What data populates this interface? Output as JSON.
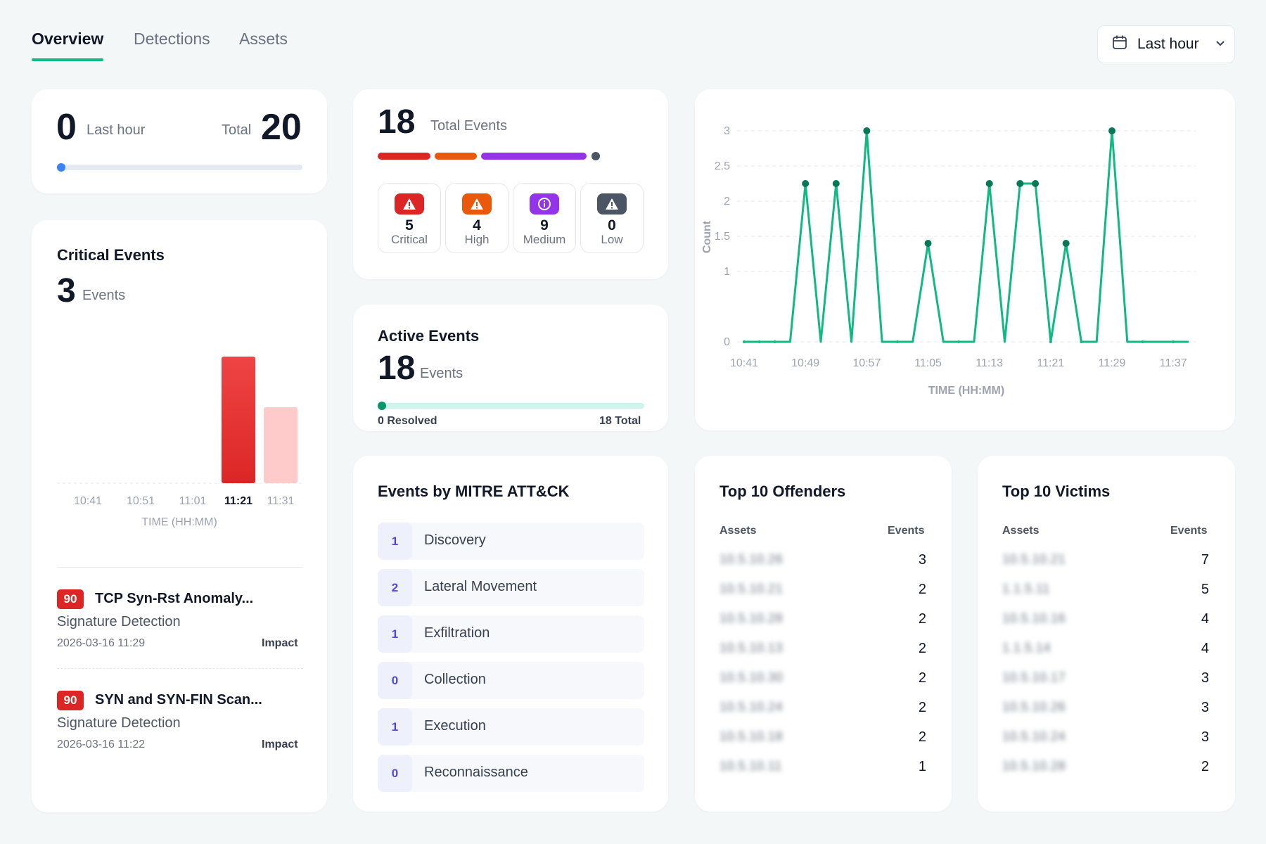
{
  "tabs": [
    "Overview",
    "Detections",
    "Assets"
  ],
  "time_range": "Last hour",
  "summary": {
    "last_hour_count": "0",
    "last_hour_label": "Last hour",
    "total_label": "Total",
    "total_count": "20",
    "progress_fraction": 0
  },
  "total_events": {
    "count": "18",
    "label": "Total Events",
    "severity": [
      {
        "count": "5",
        "label": "Critical",
        "color": "#dc2626",
        "icon": "warning-triangle-icon"
      },
      {
        "count": "4",
        "label": "High",
        "color": "#ea580c",
        "icon": "warning-triangle-icon"
      },
      {
        "count": "9",
        "label": "Medium",
        "color": "#9333ea",
        "icon": "info-circle-icon"
      },
      {
        "count": "0",
        "label": "Low",
        "color": "#4b5563",
        "icon": "warning-triangle-icon"
      }
    ]
  },
  "active_events": {
    "title": "Active Events",
    "count": "18",
    "unit": "Events",
    "resolved_count": "0",
    "resolved_label": "Resolved",
    "total_count": "18",
    "total_label": "Total"
  },
  "critical_events": {
    "title": "Critical Events",
    "count": "3",
    "unit": "Events",
    "chart": {
      "type": "bar",
      "categories": [
        "10:41",
        "10:51",
        "11:01",
        "11:21",
        "11:31"
      ],
      "highlight": "11:21",
      "bars": [
        {
          "x": "11:21",
          "value": 2,
          "color": "#dc2626"
        },
        {
          "x": "11:31",
          "value": 1.2,
          "color": "#fecaca"
        }
      ],
      "xlabel": "TIME (HH:MM)"
    },
    "items": [
      {
        "score": "90",
        "title": "TCP Syn-Rst Anomaly...",
        "type": "Signature Detection",
        "time": "2026-03-16 11:29",
        "tag": "Impact"
      },
      {
        "score": "90",
        "title": "SYN and SYN-FIN Scan...",
        "type": "Signature Detection",
        "time": "2026-03-16 11:22",
        "tag": "Impact"
      }
    ]
  },
  "chart_data": {
    "type": "line",
    "x": [
      "10:41",
      "10:43",
      "10:45",
      "10:47",
      "10:49",
      "10:51",
      "10:53",
      "10:55",
      "10:57",
      "10:59",
      "11:01",
      "11:03",
      "11:05",
      "11:07",
      "11:09",
      "11:11",
      "11:13",
      "11:15",
      "11:17",
      "11:19",
      "11:21",
      "11:23",
      "11:25",
      "11:27",
      "11:29",
      "11:31",
      "11:33",
      "11:35",
      "11:37",
      "11:39"
    ],
    "values": [
      0,
      0,
      0,
      0,
      2.25,
      0,
      2.25,
      0,
      3,
      0,
      0,
      0,
      1.4,
      0,
      0,
      0,
      2.25,
      0,
      2.25,
      2.25,
      0,
      1.4,
      0,
      0,
      3,
      0,
      0,
      0,
      0,
      0
    ],
    "x_ticks": [
      "10:41",
      "10:49",
      "10:57",
      "11:05",
      "11:13",
      "11:21",
      "11:29",
      "11:37"
    ],
    "y_ticks": [
      "0",
      "1",
      "1.5",
      "2",
      "2.5",
      "3"
    ],
    "ylim": [
      0,
      3
    ],
    "xlabel": "TIME (HH:MM)",
    "ylabel": "Count",
    "color": "#10b981",
    "grid": true
  },
  "mitre": {
    "title": "Events by MITRE ATT&CK",
    "rows": [
      {
        "count": "1",
        "label": "Discovery"
      },
      {
        "count": "2",
        "label": "Lateral Movement"
      },
      {
        "count": "1",
        "label": "Exfiltration"
      },
      {
        "count": "0",
        "label": "Collection"
      },
      {
        "count": "1",
        "label": "Execution"
      },
      {
        "count": "0",
        "label": "Reconnaissance"
      }
    ]
  },
  "offenders": {
    "title": "Top 10 Offenders",
    "col_asset": "Assets",
    "col_events": "Events",
    "rows": [
      {
        "asset": "10.5.10.26",
        "events": "3"
      },
      {
        "asset": "10.5.10.21",
        "events": "2"
      },
      {
        "asset": "10.5.10.28",
        "events": "2"
      },
      {
        "asset": "10.5.10.13",
        "events": "2"
      },
      {
        "asset": "10.5.10.30",
        "events": "2"
      },
      {
        "asset": "10.5.10.24",
        "events": "2"
      },
      {
        "asset": "10.5.10.18",
        "events": "2"
      },
      {
        "asset": "10.5.10.11",
        "events": "1"
      }
    ]
  },
  "victims": {
    "title": "Top 10 Victims",
    "col_asset": "Assets",
    "col_events": "Events",
    "rows": [
      {
        "asset": "10.5.10.21",
        "events": "7"
      },
      {
        "asset": "1.1.5.11",
        "events": "5"
      },
      {
        "asset": "10.5.10.16",
        "events": "4"
      },
      {
        "asset": "1.1.5.14",
        "events": "4"
      },
      {
        "asset": "10.5.10.17",
        "events": "3"
      },
      {
        "asset": "10.5.10.26",
        "events": "3"
      },
      {
        "asset": "10.5.10.24",
        "events": "3"
      },
      {
        "asset": "10.5.10.28",
        "events": "2"
      }
    ]
  }
}
